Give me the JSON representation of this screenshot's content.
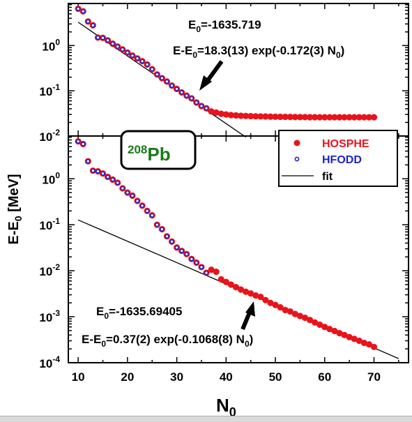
{
  "chart_data": [
    {
      "id": "top",
      "type": "scatter",
      "title": "",
      "xlabel": "N0",
      "ylabel": "E-E0 [MeV]",
      "xlim": [
        8,
        77
      ],
      "ylim": [
        0.01,
        8.5
      ],
      "yscale": "log",
      "xticks": [
        10,
        20,
        30,
        40,
        50,
        60,
        70
      ],
      "yticks": [
        {
          "value": 1,
          "base": "10",
          "exp": "0"
        },
        {
          "value": 0.1,
          "base": "10",
          "exp": "-1"
        },
        {
          "value": 0.01,
          "base": "10",
          "exp": "-2"
        }
      ],
      "annotations": [
        {
          "text": "E0=-1635.719",
          "main": "E",
          "sub": "0",
          "rest": "=-1635.719"
        },
        {
          "text": "E-E0=18.3(13) exp(-0.172(3) N0)",
          "pre": "E-E",
          "sub": "0",
          "rest": "=18.3(13) exp(-0.172(3) N",
          "sub2": "0",
          "post": ")"
        }
      ],
      "fit": {
        "a": 18.3,
        "b": -0.172,
        "x_start": 10,
        "x_end": 44
      },
      "series": [
        {
          "name": "HOSPHE",
          "color": "#e8141c",
          "x": [
            10,
            11,
            12,
            13,
            14,
            15,
            16,
            17,
            18,
            19,
            20,
            21,
            22,
            23,
            24,
            25,
            26,
            27,
            28,
            29,
            30,
            31,
            32,
            33,
            34,
            35,
            36,
            37,
            38,
            39,
            40,
            41,
            42,
            43,
            44,
            45,
            46,
            47,
            48,
            49,
            50,
            51,
            52,
            53,
            54,
            55,
            56,
            57,
            58,
            59,
            60,
            61,
            62,
            63,
            64,
            65,
            66,
            67,
            68,
            69,
            70
          ],
          "y": [
            6.5,
            5.7,
            3.4,
            2.8,
            1.5,
            1.48,
            1.3,
            1.1,
            0.95,
            0.82,
            0.7,
            0.6,
            0.52,
            0.45,
            0.38,
            0.3,
            0.23,
            0.19,
            0.16,
            0.13,
            0.11,
            0.092,
            0.078,
            0.068,
            0.055,
            0.046,
            0.041,
            0.035,
            0.033,
            0.031,
            0.03,
            0.029,
            0.0285,
            0.028,
            0.0278,
            0.0275,
            0.0273,
            0.0271,
            0.027,
            0.0268,
            0.0267,
            0.0266,
            0.0265,
            0.0264,
            0.0263,
            0.0262,
            0.0262,
            0.0261,
            0.0261,
            0.026,
            0.026,
            0.026,
            0.026,
            0.026,
            0.026,
            0.026,
            0.026,
            0.026,
            0.026,
            0.026,
            0.026
          ]
        },
        {
          "name": "HFODD",
          "color": "#1e23c8",
          "x": [
            10,
            11,
            12,
            13,
            14,
            15,
            16,
            17,
            18,
            19,
            20,
            21,
            22,
            23,
            24,
            25,
            26,
            27,
            28,
            29,
            30,
            31,
            32,
            33,
            34,
            35,
            36
          ],
          "y": [
            6.5,
            5.7,
            3.4,
            2.8,
            1.5,
            1.48,
            1.3,
            1.1,
            0.95,
            0.82,
            0.7,
            0.6,
            0.52,
            0.45,
            0.38,
            0.3,
            0.23,
            0.19,
            0.16,
            0.13,
            0.11,
            0.092,
            0.078,
            0.068,
            0.055,
            0.046,
            0.041
          ]
        }
      ]
    },
    {
      "id": "bottom",
      "type": "scatter",
      "title": "",
      "xlabel": "N0",
      "ylabel": "E-E0 [MeV]",
      "xlim": [
        8,
        77
      ],
      "ylim": [
        0.0001,
        8.5
      ],
      "yscale": "log",
      "xticks": [
        10,
        20,
        30,
        40,
        50,
        60,
        70
      ],
      "yticks": [
        {
          "value": 1,
          "base": "10",
          "exp": "0"
        },
        {
          "value": 0.1,
          "base": "10",
          "exp": "-1"
        },
        {
          "value": 0.01,
          "base": "10",
          "exp": "-2"
        },
        {
          "value": 0.001,
          "base": "10",
          "exp": "-3"
        },
        {
          "value": 0.0001,
          "base": "10",
          "exp": "-4"
        }
      ],
      "annotations": [
        {
          "text": "E0=-1635.69405",
          "main": "E",
          "sub": "0",
          "rest": "=-1635.69405"
        },
        {
          "text": "E-E0=0.37(2) exp(-0.1068(8) N0)",
          "pre": "E-E",
          "sub": "0",
          "rest": "=0.37(2) exp(-0.1068(8) N",
          "sub2": "0",
          "post": ")"
        }
      ],
      "fit": {
        "a": 0.37,
        "b": -0.1068,
        "x_start": 10,
        "x_end": 75
      },
      "series": [
        {
          "name": "HOSPHE",
          "color": "#e8141c",
          "x": [
            10,
            11,
            12,
            13,
            14,
            15,
            16,
            17,
            18,
            19,
            20,
            21,
            22,
            23,
            24,
            25,
            26,
            27,
            28,
            29,
            30,
            31,
            32,
            33,
            34,
            35,
            36,
            37,
            38,
            39,
            40,
            41,
            42,
            43,
            44,
            45,
            46,
            47,
            48,
            49,
            50,
            51,
            52,
            53,
            54,
            55,
            56,
            57,
            58,
            59,
            60,
            61,
            62,
            63,
            64,
            65,
            66,
            67,
            68,
            69,
            70
          ],
          "y": [
            6.5,
            5.7,
            2.4,
            1.5,
            1.45,
            1.3,
            1.1,
            0.96,
            0.82,
            0.62,
            0.5,
            0.43,
            0.33,
            0.26,
            0.2,
            0.16,
            0.1,
            0.08,
            0.056,
            0.043,
            0.032,
            0.027,
            0.023,
            0.018,
            0.015,
            0.012,
            0.009,
            0.0105,
            0.0095,
            0.0065,
            0.0057,
            0.005,
            0.0044,
            0.0039,
            0.0035,
            0.0032,
            0.0029,
            0.0027,
            0.0023,
            0.002,
            0.0018,
            0.0016,
            0.0014,
            0.0013,
            0.00115,
            0.00104,
            0.00095,
            0.00085,
            0.00075,
            0.00067,
            0.0006,
            0.00054,
            0.00049,
            0.00044,
            0.0004,
            0.00036,
            0.00033,
            0.0003,
            0.00027,
            0.00025,
            0.00022
          ]
        },
        {
          "name": "HFODD",
          "color": "#1e23c8",
          "x": [
            10,
            11,
            12,
            13,
            14,
            15,
            16,
            17,
            18,
            19,
            20,
            21,
            22,
            23,
            24,
            25,
            26,
            27,
            28,
            29,
            30,
            31,
            32,
            33,
            34,
            35,
            36
          ],
          "y": [
            6.5,
            5.7,
            2.4,
            1.5,
            1.45,
            1.3,
            1.1,
            0.96,
            0.82,
            0.62,
            0.5,
            0.43,
            0.33,
            0.26,
            0.2,
            0.16,
            0.1,
            0.08,
            0.056,
            0.043,
            0.032,
            0.027,
            0.023,
            0.018,
            0.015,
            0.012,
            0.009
          ]
        }
      ]
    }
  ],
  "axis_labels": {
    "x_main": "N",
    "x_sub": "0",
    "y_pre": "E-E",
    "y_sub": "0",
    "y_post": " [MeV]"
  },
  "nucleus": {
    "mass": "208",
    "symbol": "Pb",
    "color": "#1a7a1a"
  },
  "legend": [
    {
      "label": "HOSPHE",
      "color": "#e8141c",
      "kind": "filled"
    },
    {
      "label": "HFODD",
      "color": "#1e23c8",
      "kind": "open"
    },
    {
      "label": "fit",
      "color": "#000000",
      "kind": "line"
    }
  ]
}
